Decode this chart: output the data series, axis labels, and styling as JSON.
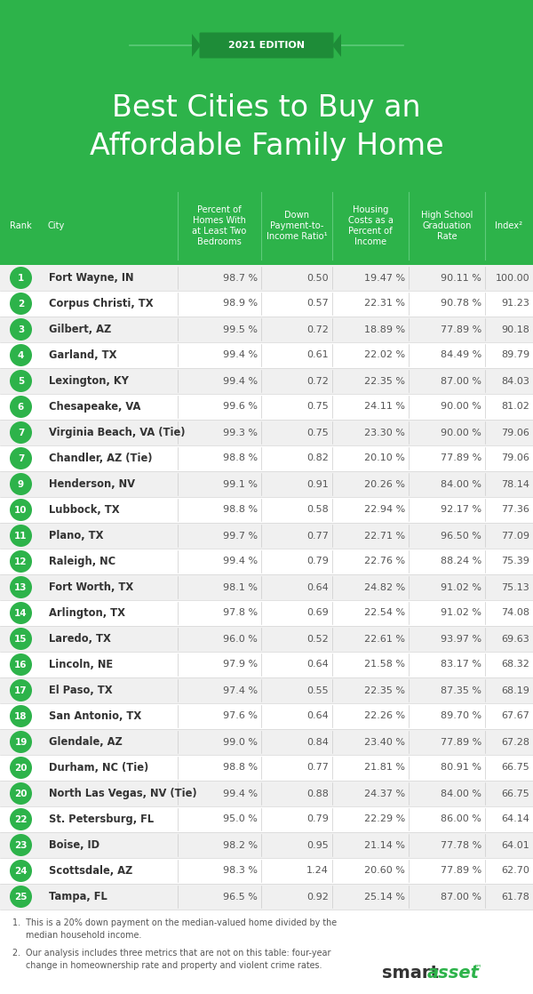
{
  "title": "Best Cities to Buy an\nAffordable Family Home",
  "edition": "2021 EDITION",
  "green": "#2db34a",
  "dark_green": "#1e8c38",
  "light_green_line": "#5ecb7a",
  "bg_color_row_odd": "#f0f0f0",
  "bg_color_row_even": "#ffffff",
  "white": "#ffffff",
  "text_dark": "#333333",
  "text_mid": "#555555",
  "col_headers": [
    "Rank",
    "City",
    "Percent of\nHomes With\nat Least Two\nBedrooms",
    "Down\nPayment-to-\nIncome Ratio¹",
    "Housing\nCosts as a\nPercent of\nIncome",
    "High School\nGraduation\nRate",
    "Index²"
  ],
  "footnote1": "1.  This is a 20% down payment on the median-valued home divided by the\n     median household income.",
  "footnote2": "2.  Our analysis includes three metrics that are not on this table: four-year\n     change in homeownership rate and property and violent crime rates.",
  "rows": [
    {
      "rank": "1",
      "city": "Fort Wayne, IN",
      "pct": "98.7 %",
      "dp": "0.50",
      "hc": "19.47 %",
      "hs": "90.11 %",
      "idx": "100.00"
    },
    {
      "rank": "2",
      "city": "Corpus Christi, TX",
      "pct": "98.9 %",
      "dp": "0.57",
      "hc": "22.31 %",
      "hs": "90.78 %",
      "idx": "91.23"
    },
    {
      "rank": "3",
      "city": "Gilbert, AZ",
      "pct": "99.5 %",
      "dp": "0.72",
      "hc": "18.89 %",
      "hs": "77.89 %",
      "idx": "90.18"
    },
    {
      "rank": "4",
      "city": "Garland, TX",
      "pct": "99.4 %",
      "dp": "0.61",
      "hc": "22.02 %",
      "hs": "84.49 %",
      "idx": "89.79"
    },
    {
      "rank": "5",
      "city": "Lexington, KY",
      "pct": "99.4 %",
      "dp": "0.72",
      "hc": "22.35 %",
      "hs": "87.00 %",
      "idx": "84.03"
    },
    {
      "rank": "6",
      "city": "Chesapeake, VA",
      "pct": "99.6 %",
      "dp": "0.75",
      "hc": "24.11 %",
      "hs": "90.00 %",
      "idx": "81.02"
    },
    {
      "rank": "7",
      "city": "Virginia Beach, VA (Tie)",
      "pct": "99.3 %",
      "dp": "0.75",
      "hc": "23.30 %",
      "hs": "90.00 %",
      "idx": "79.06"
    },
    {
      "rank": "7",
      "city": "Chandler, AZ (Tie)",
      "pct": "98.8 %",
      "dp": "0.82",
      "hc": "20.10 %",
      "hs": "77.89 %",
      "idx": "79.06"
    },
    {
      "rank": "9",
      "city": "Henderson, NV",
      "pct": "99.1 %",
      "dp": "0.91",
      "hc": "20.26 %",
      "hs": "84.00 %",
      "idx": "78.14"
    },
    {
      "rank": "10",
      "city": "Lubbock, TX",
      "pct": "98.8 %",
      "dp": "0.58",
      "hc": "22.94 %",
      "hs": "92.17 %",
      "idx": "77.36"
    },
    {
      "rank": "11",
      "city": "Plano, TX",
      "pct": "99.7 %",
      "dp": "0.77",
      "hc": "22.71 %",
      "hs": "96.50 %",
      "idx": "77.09"
    },
    {
      "rank": "12",
      "city": "Raleigh, NC",
      "pct": "99.4 %",
      "dp": "0.79",
      "hc": "22.76 %",
      "hs": "88.24 %",
      "idx": "75.39"
    },
    {
      "rank": "13",
      "city": "Fort Worth, TX",
      "pct": "98.1 %",
      "dp": "0.64",
      "hc": "24.82 %",
      "hs": "91.02 %",
      "idx": "75.13"
    },
    {
      "rank": "14",
      "city": "Arlington, TX",
      "pct": "97.8 %",
      "dp": "0.69",
      "hc": "22.54 %",
      "hs": "91.02 %",
      "idx": "74.08"
    },
    {
      "rank": "15",
      "city": "Laredo, TX",
      "pct": "96.0 %",
      "dp": "0.52",
      "hc": "22.61 %",
      "hs": "93.97 %",
      "idx": "69.63"
    },
    {
      "rank": "16",
      "city": "Lincoln, NE",
      "pct": "97.9 %",
      "dp": "0.64",
      "hc": "21.58 %",
      "hs": "83.17 %",
      "idx": "68.32"
    },
    {
      "rank": "17",
      "city": "El Paso, TX",
      "pct": "97.4 %",
      "dp": "0.55",
      "hc": "22.35 %",
      "hs": "87.35 %",
      "idx": "68.19"
    },
    {
      "rank": "18",
      "city": "San Antonio, TX",
      "pct": "97.6 %",
      "dp": "0.64",
      "hc": "22.26 %",
      "hs": "89.70 %",
      "idx": "67.67"
    },
    {
      "rank": "19",
      "city": "Glendale, AZ",
      "pct": "99.0 %",
      "dp": "0.84",
      "hc": "23.40 %",
      "hs": "77.89 %",
      "idx": "67.28"
    },
    {
      "rank": "20",
      "city": "Durham, NC (Tie)",
      "pct": "98.8 %",
      "dp": "0.77",
      "hc": "21.81 %",
      "hs": "80.91 %",
      "idx": "66.75"
    },
    {
      "rank": "20",
      "city": "North Las Vegas, NV (Tie)",
      "pct": "99.4 %",
      "dp": "0.88",
      "hc": "24.37 %",
      "hs": "84.00 %",
      "idx": "66.75"
    },
    {
      "rank": "22",
      "city": "St. Petersburg, FL",
      "pct": "95.0 %",
      "dp": "0.79",
      "hc": "22.29 %",
      "hs": "86.00 %",
      "idx": "64.14"
    },
    {
      "rank": "23",
      "city": "Boise, ID",
      "pct": "98.2 %",
      "dp": "0.95",
      "hc": "21.14 %",
      "hs": "77.78 %",
      "idx": "64.01"
    },
    {
      "rank": "24",
      "city": "Scottsdale, AZ",
      "pct": "98.3 %",
      "dp": "1.24",
      "hc": "20.60 %",
      "hs": "77.89 %",
      "idx": "62.70"
    },
    {
      "rank": "25",
      "city": "Tampa, FL",
      "pct": "96.5 %",
      "dp": "0.92",
      "hc": "25.14 %",
      "hs": "87.00 %",
      "idx": "61.78"
    }
  ]
}
